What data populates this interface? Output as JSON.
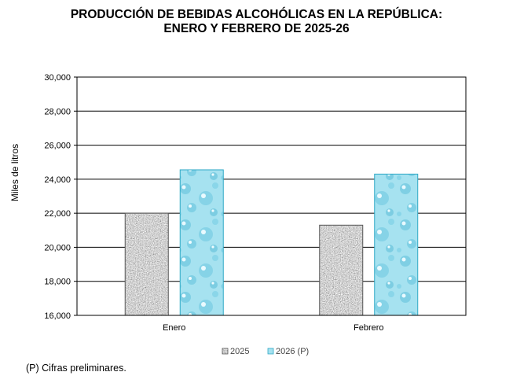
{
  "chart_data": {
    "type": "bar",
    "title": [
      "PRODUCCIÓN DE BEBIDAS ALCOHÓLICAS EN LA REPÚBLICA:",
      "ENERO Y FEBRERO DE 2025-26"
    ],
    "ylabel": "Miles de litros",
    "xlabel": "",
    "categories": [
      "Enero",
      "Febrero"
    ],
    "series": [
      {
        "name": "2025",
        "values": [
          22000,
          21300
        ],
        "color": "#9a9a9a"
      },
      {
        "name": "2026 (P)",
        "values": [
          24550,
          24300
        ],
        "color": "#9fdfee"
      }
    ],
    "ylim": [
      16000,
      30000
    ],
    "yticks": [
      "16,000",
      "18,000",
      "20,000",
      "22,000",
      "24,000",
      "26,000",
      "28,000",
      "30,000"
    ],
    "grid": true,
    "legend": "bottom"
  },
  "footnote": "(P) Cifras preliminares."
}
